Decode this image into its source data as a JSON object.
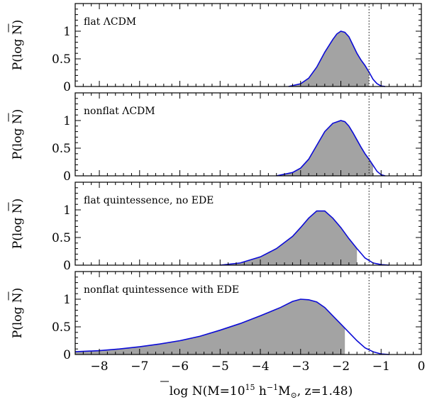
{
  "chart_data": {
    "type": "area",
    "xlabel_main": "log ",
    "xlabel_N": "N",
    "xlabel_open": "(M=10",
    "xlabel_exp": "15",
    "xlabel_h": " h",
    "xlabel_hexp": "−1",
    "xlabel_M": "M",
    "xlabel_sun": "⊙",
    "xlabel_end": ", z=1.48)",
    "ylabel_prefix": "P(log ",
    "ylabel_N": "N",
    "ylabel_suffix": ")",
    "xlim": [
      -8.6,
      0
    ],
    "ylim": [
      0,
      1.5
    ],
    "x_ticks": [
      -8,
      -7,
      -6,
      -5,
      -4,
      -3,
      -2,
      -1,
      0
    ],
    "x_tick_labels": [
      "−8",
      "−7",
      "−6",
      "−5",
      "−4",
      "−3",
      "−2",
      "−1",
      "0"
    ],
    "y_ticks": [
      0,
      0.5,
      1
    ],
    "y_tick_labels": [
      "0",
      "0.5",
      "1"
    ],
    "reference_x": -1.3,
    "panels": [
      {
        "label": "flat ΛCDM",
        "fill_to": -1.3,
        "x": [
          -3.3,
          -3.0,
          -2.8,
          -2.6,
          -2.4,
          -2.2,
          -2.1,
          -2.0,
          -1.9,
          -1.8,
          -1.7,
          -1.6,
          -1.5,
          -1.4,
          -1.3,
          -1.2,
          -1.1,
          -1.0,
          -0.9
        ],
        "y": [
          0.0,
          0.05,
          0.15,
          0.35,
          0.62,
          0.85,
          0.95,
          1.0,
          0.98,
          0.9,
          0.75,
          0.6,
          0.48,
          0.38,
          0.26,
          0.13,
          0.05,
          0.01,
          0.0
        ]
      },
      {
        "label": "nonflat ΛCDM",
        "fill_to": -1.2,
        "x": [
          -3.6,
          -3.2,
          -3.0,
          -2.8,
          -2.6,
          -2.4,
          -2.2,
          -2.0,
          -1.9,
          -1.8,
          -1.7,
          -1.6,
          -1.5,
          -1.4,
          -1.3,
          -1.2,
          -1.1,
          -1.0,
          -0.9
        ],
        "y": [
          0.0,
          0.06,
          0.14,
          0.3,
          0.55,
          0.8,
          0.95,
          1.0,
          0.98,
          0.9,
          0.78,
          0.65,
          0.52,
          0.4,
          0.3,
          0.19,
          0.08,
          0.02,
          0.0
        ]
      },
      {
        "label": "flat quintessence, no EDE",
        "fill_to": -1.6,
        "x": [
          -5.0,
          -4.5,
          -4.0,
          -3.6,
          -3.2,
          -3.0,
          -2.8,
          -2.6,
          -2.4,
          -2.2,
          -2.0,
          -1.8,
          -1.6,
          -1.4,
          -1.2,
          -1.0,
          -0.8
        ],
        "y": [
          0.0,
          0.04,
          0.15,
          0.3,
          0.52,
          0.68,
          0.85,
          0.98,
          0.98,
          0.85,
          0.68,
          0.48,
          0.3,
          0.13,
          0.04,
          0.01,
          0.0
        ]
      },
      {
        "label": "nonflat quintessence with EDE",
        "fill_to": -1.9,
        "x": [
          -8.6,
          -8.0,
          -7.5,
          -7.0,
          -6.5,
          -6.0,
          -5.5,
          -5.0,
          -4.5,
          -4.0,
          -3.5,
          -3.2,
          -3.0,
          -2.8,
          -2.6,
          -2.4,
          -2.2,
          -2.0,
          -1.8,
          -1.6,
          -1.4,
          -1.2,
          -1.0,
          -0.8
        ],
        "y": [
          0.05,
          0.07,
          0.1,
          0.14,
          0.19,
          0.25,
          0.33,
          0.44,
          0.56,
          0.7,
          0.85,
          0.96,
          1.0,
          0.99,
          0.95,
          0.85,
          0.7,
          0.55,
          0.4,
          0.25,
          0.12,
          0.05,
          0.01,
          0.0
        ]
      }
    ]
  }
}
